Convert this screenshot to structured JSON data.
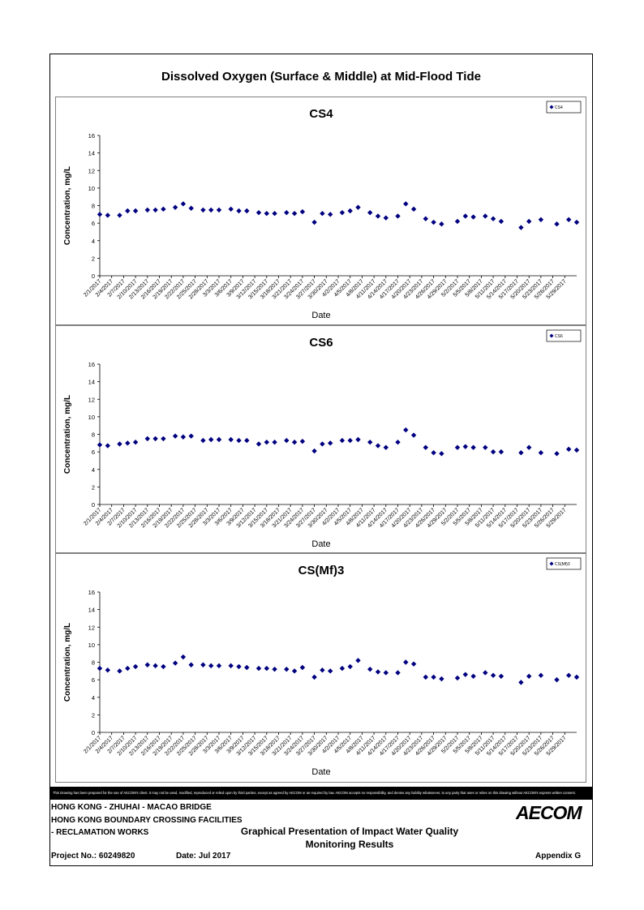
{
  "page_title": "Dissolved Oxygen (Surface & Middle) at Mid-Flood Tide",
  "disclaimer": "This Drawing has been prepared for the use of AECOM's client. It may not be used, modified, reproduced or relied upon by third parties, except as agreed by AECOM or as required by law. AECOM accepts no responsibility, and denies any liability whatsoever, to any party that uses or relies on this drawing without AECOM's express written consent.",
  "title_block": {
    "project_line1": "HONG KONG - ZHUHAI - MACAO BRIDGE",
    "project_line2": "HONG KONG BOUNDARY CROSSING FACILITIES",
    "project_line3": "- RECLAMATION WORKS",
    "drawing_title_line1": "Graphical Presentation of Impact Water Quality",
    "drawing_title_line2": "Monitoring Results",
    "project_no": "Project No.: 60249820",
    "date": "Date: Jul 2017",
    "appendix": "Appendix G",
    "logo_text": "AECOM"
  },
  "colors": {
    "marker": "#000080",
    "axis": "#000000",
    "panel_border": "#808080"
  },
  "chart_data": [
    {
      "type": "scatter",
      "title": "CS4",
      "xlabel": "Date",
      "ylabel": "Concentration, mg/L",
      "ylim": [
        0,
        16
      ],
      "yticks": [
        0,
        2,
        4,
        6,
        8,
        10,
        12,
        14,
        16
      ],
      "grid": false,
      "legend_position": "top-right",
      "x_tick_labels": [
        "2/1/2017",
        "2/4/2017",
        "2/7/2017",
        "2/10/2017",
        "2/13/2017",
        "2/16/2017",
        "2/19/2017",
        "2/22/2017",
        "2/25/2017",
        "2/28/2017",
        "3/3/2017",
        "3/6/2017",
        "3/9/2017",
        "3/12/2017",
        "3/15/2017",
        "3/18/2017",
        "3/21/2017",
        "3/24/2017",
        "3/27/2017",
        "3/30/2017",
        "4/2/2017",
        "4/5/2017",
        "4/8/2017",
        "4/11/2017",
        "4/14/2017",
        "4/17/2017",
        "4/20/2017",
        "4/23/2017",
        "4/26/2017",
        "4/29/2017",
        "5/2/2017",
        "5/5/2017",
        "5/8/2017",
        "5/11/2017",
        "5/14/2017",
        "5/17/2017",
        "5/20/2017",
        "5/23/2017",
        "5/26/2017",
        "5/29/2017"
      ],
      "series": [
        {
          "name": "CS4",
          "points": [
            [
              "2/1/2017",
              7.0
            ],
            [
              "2/3/2017",
              6.9
            ],
            [
              "2/6/2017",
              6.9
            ],
            [
              "2/8/2017",
              7.4
            ],
            [
              "2/10/2017",
              7.4
            ],
            [
              "2/13/2017",
              7.5
            ],
            [
              "2/15/2017",
              7.5
            ],
            [
              "2/17/2017",
              7.6
            ],
            [
              "2/20/2017",
              7.8
            ],
            [
              "2/22/2017",
              8.2
            ],
            [
              "2/24/2017",
              7.7
            ],
            [
              "2/27/2017",
              7.5
            ],
            [
              "3/1/2017",
              7.5
            ],
            [
              "3/3/2017",
              7.5
            ],
            [
              "3/6/2017",
              7.6
            ],
            [
              "3/8/2017",
              7.4
            ],
            [
              "3/10/2017",
              7.4
            ],
            [
              "3/13/2017",
              7.2
            ],
            [
              "3/15/2017",
              7.1
            ],
            [
              "3/17/2017",
              7.1
            ],
            [
              "3/20/2017",
              7.2
            ],
            [
              "3/22/2017",
              7.1
            ],
            [
              "3/24/2017",
              7.3
            ],
            [
              "3/27/2017",
              6.1
            ],
            [
              "3/29/2017",
              7.1
            ],
            [
              "3/31/2017",
              7.0
            ],
            [
              "4/3/2017",
              7.2
            ],
            [
              "4/5/2017",
              7.4
            ],
            [
              "4/7/2017",
              7.8
            ],
            [
              "4/10/2017",
              7.2
            ],
            [
              "4/12/2017",
              6.8
            ],
            [
              "4/14/2017",
              6.6
            ],
            [
              "4/17/2017",
              6.8
            ],
            [
              "4/19/2017",
              8.2
            ],
            [
              "4/21/2017",
              7.6
            ],
            [
              "4/24/2017",
              6.5
            ],
            [
              "4/26/2017",
              6.1
            ],
            [
              "4/28/2017",
              5.9
            ],
            [
              "5/2/2017",
              6.2
            ],
            [
              "5/4/2017",
              6.8
            ],
            [
              "5/6/2017",
              6.7
            ],
            [
              "5/9/2017",
              6.8
            ],
            [
              "5/11/2017",
              6.5
            ],
            [
              "5/13/2017",
              6.2
            ],
            [
              "5/18/2017",
              5.5
            ],
            [
              "5/20/2017",
              6.2
            ],
            [
              "5/23/2017",
              6.4
            ],
            [
              "5/27/2017",
              5.9
            ],
            [
              "5/30/2017",
              6.4
            ],
            [
              "6/1/2017",
              6.1
            ]
          ]
        }
      ]
    },
    {
      "type": "scatter",
      "title": "CS6",
      "xlabel": "Date",
      "ylabel": "Concentration, mg/L",
      "ylim": [
        0,
        16
      ],
      "yticks": [
        0,
        2,
        4,
        6,
        8,
        10,
        12,
        14,
        16
      ],
      "grid": false,
      "legend_position": "top-right",
      "x_tick_labels": [
        "2/1/2017",
        "2/4/2017",
        "2/7/2017",
        "2/10/2017",
        "2/13/2017",
        "2/16/2017",
        "2/19/2017",
        "2/22/2017",
        "2/25/2017",
        "2/28/2017",
        "3/3/2017",
        "3/6/2017",
        "3/9/2017",
        "3/12/2017",
        "3/15/2017",
        "3/18/2017",
        "3/21/2017",
        "3/24/2017",
        "3/27/2017",
        "3/30/2017",
        "4/2/2017",
        "4/5/2017",
        "4/8/2017",
        "4/11/2017",
        "4/14/2017",
        "4/17/2017",
        "4/20/2017",
        "4/23/2017",
        "4/26/2017",
        "4/29/2017",
        "5/2/2017",
        "5/5/2017",
        "5/8/2017",
        "5/11/2017",
        "5/14/2017",
        "5/17/2017",
        "5/20/2017",
        "5/23/2017",
        "5/26/2017",
        "5/29/2017"
      ],
      "series": [
        {
          "name": "CS6",
          "points": [
            [
              "2/1/2017",
              6.8
            ],
            [
              "2/3/2017",
              6.7
            ],
            [
              "2/6/2017",
              6.9
            ],
            [
              "2/8/2017",
              7.0
            ],
            [
              "2/10/2017",
              7.1
            ],
            [
              "2/13/2017",
              7.5
            ],
            [
              "2/15/2017",
              7.5
            ],
            [
              "2/17/2017",
              7.5
            ],
            [
              "2/20/2017",
              7.8
            ],
            [
              "2/22/2017",
              7.7
            ],
            [
              "2/24/2017",
              7.8
            ],
            [
              "2/27/2017",
              7.3
            ],
            [
              "3/1/2017",
              7.4
            ],
            [
              "3/3/2017",
              7.4
            ],
            [
              "3/6/2017",
              7.4
            ],
            [
              "3/8/2017",
              7.3
            ],
            [
              "3/10/2017",
              7.3
            ],
            [
              "3/13/2017",
              6.9
            ],
            [
              "3/15/2017",
              7.1
            ],
            [
              "3/17/2017",
              7.1
            ],
            [
              "3/20/2017",
              7.3
            ],
            [
              "3/22/2017",
              7.1
            ],
            [
              "3/24/2017",
              7.2
            ],
            [
              "3/27/2017",
              6.1
            ],
            [
              "3/29/2017",
              6.9
            ],
            [
              "3/31/2017",
              7.0
            ],
            [
              "4/3/2017",
              7.3
            ],
            [
              "4/5/2017",
              7.3
            ],
            [
              "4/7/2017",
              7.4
            ],
            [
              "4/10/2017",
              7.1
            ],
            [
              "4/12/2017",
              6.7
            ],
            [
              "4/14/2017",
              6.5
            ],
            [
              "4/17/2017",
              7.1
            ],
            [
              "4/19/2017",
              8.5
            ],
            [
              "4/21/2017",
              7.9
            ],
            [
              "4/24/2017",
              6.5
            ],
            [
              "4/26/2017",
              5.9
            ],
            [
              "4/28/2017",
              5.8
            ],
            [
              "5/2/2017",
              6.5
            ],
            [
              "5/4/2017",
              6.6
            ],
            [
              "5/6/2017",
              6.5
            ],
            [
              "5/9/2017",
              6.5
            ],
            [
              "5/11/2017",
              6.0
            ],
            [
              "5/13/2017",
              6.0
            ],
            [
              "5/18/2017",
              5.9
            ],
            [
              "5/20/2017",
              6.5
            ],
            [
              "5/23/2017",
              5.9
            ],
            [
              "5/27/2017",
              5.8
            ],
            [
              "5/30/2017",
              6.3
            ],
            [
              "6/1/2017",
              6.2
            ]
          ]
        }
      ]
    },
    {
      "type": "scatter",
      "title": "CS(Mf)3",
      "xlabel": "Date",
      "ylabel": "Concentration, mg/L",
      "ylim": [
        0,
        16
      ],
      "yticks": [
        0,
        2,
        4,
        6,
        8,
        10,
        12,
        14,
        16
      ],
      "grid": false,
      "legend_position": "top-right",
      "x_tick_labels": [
        "2/1/2017",
        "2/4/2017",
        "2/7/2017",
        "2/10/2017",
        "2/13/2017",
        "2/16/2017",
        "2/19/2017",
        "2/22/2017",
        "2/25/2017",
        "2/28/2017",
        "3/3/2017",
        "3/6/2017",
        "3/9/2017",
        "3/12/2017",
        "3/15/2017",
        "3/18/2017",
        "3/21/2017",
        "3/24/2017",
        "3/27/2017",
        "3/30/2017",
        "4/2/2017",
        "4/5/2017",
        "4/8/2017",
        "4/11/2017",
        "4/14/2017",
        "4/17/2017",
        "4/20/2017",
        "4/23/2017",
        "4/26/2017",
        "4/29/2017",
        "5/2/2017",
        "5/5/2017",
        "5/8/2017",
        "5/11/2017",
        "5/14/2017",
        "5/17/2017",
        "5/20/2017",
        "5/23/2017",
        "5/26/2017",
        "5/29/2017"
      ],
      "series": [
        {
          "name": "CS(Mf)3",
          "points": [
            [
              "2/1/2017",
              7.3
            ],
            [
              "2/3/2017",
              7.1
            ],
            [
              "2/6/2017",
              7.0
            ],
            [
              "2/8/2017",
              7.3
            ],
            [
              "2/10/2017",
              7.5
            ],
            [
              "2/13/2017",
              7.7
            ],
            [
              "2/15/2017",
              7.6
            ],
            [
              "2/17/2017",
              7.5
            ],
            [
              "2/20/2017",
              7.9
            ],
            [
              "2/22/2017",
              8.6
            ],
            [
              "2/24/2017",
              7.7
            ],
            [
              "2/27/2017",
              7.7
            ],
            [
              "3/1/2017",
              7.6
            ],
            [
              "3/3/2017",
              7.6
            ],
            [
              "3/6/2017",
              7.6
            ],
            [
              "3/8/2017",
              7.5
            ],
            [
              "3/10/2017",
              7.4
            ],
            [
              "3/13/2017",
              7.3
            ],
            [
              "3/15/2017",
              7.3
            ],
            [
              "3/17/2017",
              7.2
            ],
            [
              "3/20/2017",
              7.2
            ],
            [
              "3/22/2017",
              7.0
            ],
            [
              "3/24/2017",
              7.4
            ],
            [
              "3/27/2017",
              6.3
            ],
            [
              "3/29/2017",
              7.1
            ],
            [
              "3/31/2017",
              7.0
            ],
            [
              "4/3/2017",
              7.3
            ],
            [
              "4/5/2017",
              7.5
            ],
            [
              "4/7/2017",
              8.2
            ],
            [
              "4/10/2017",
              7.2
            ],
            [
              "4/12/2017",
              6.9
            ],
            [
              "4/14/2017",
              6.8
            ],
            [
              "4/17/2017",
              6.8
            ],
            [
              "4/19/2017",
              8.0
            ],
            [
              "4/21/2017",
              7.8
            ],
            [
              "4/24/2017",
              6.3
            ],
            [
              "4/26/2017",
              6.3
            ],
            [
              "4/28/2017",
              6.1
            ],
            [
              "5/2/2017",
              6.2
            ],
            [
              "5/4/2017",
              6.6
            ],
            [
              "5/6/2017",
              6.4
            ],
            [
              "5/9/2017",
              6.8
            ],
            [
              "5/11/2017",
              6.5
            ],
            [
              "5/13/2017",
              6.4
            ],
            [
              "5/18/2017",
              5.7
            ],
            [
              "5/20/2017",
              6.4
            ],
            [
              "5/23/2017",
              6.5
            ],
            [
              "5/27/2017",
              6.0
            ],
            [
              "5/30/2017",
              6.5
            ],
            [
              "6/1/2017",
              6.3
            ]
          ]
        }
      ]
    }
  ]
}
